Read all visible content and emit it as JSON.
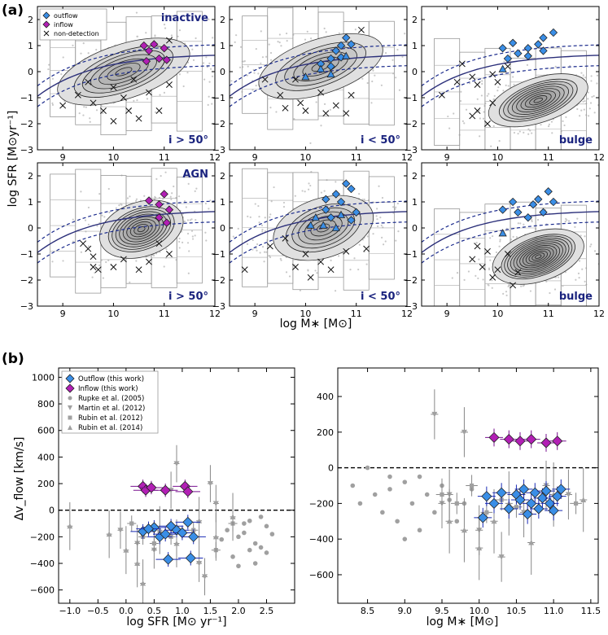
{
  "figure": {
    "label_a": "(a)",
    "label_b": "(b)",
    "shared_ylabel_a": "log SFR [M⊙yr⁻¹]",
    "shared_xlabel_a": "log M∗ [M⊙]"
  },
  "colors": {
    "outflow": "#3a8ee6",
    "inflow": "#b21fb5",
    "dashed_line": "#1a2a8c",
    "solid_line": "#2b2f7a",
    "label_text": "#1a237e",
    "literature": "#a0a0a0"
  },
  "chart_data": [
    {
      "id": "a1",
      "type": "scatter",
      "xlim": [
        8.5,
        12
      ],
      "ylim": [
        -3,
        2.5
      ],
      "xticks": [
        "9",
        "10",
        "11",
        "12"
      ],
      "yticks": [
        "-3",
        "-2",
        "-1",
        "0",
        "1",
        "2"
      ],
      "label_top": "inactive",
      "label_bottom": "i > 50°",
      "legend": [
        "outflow",
        "inflow",
        "non-detection"
      ],
      "outflow": [],
      "outflow_tri": [],
      "inflow": [
        [
          10.6,
          1.0
        ],
        [
          10.8,
          1.05
        ],
        [
          10.7,
          0.8
        ],
        [
          11.0,
          0.9
        ],
        [
          10.9,
          0.5
        ],
        [
          11.05,
          0.45
        ],
        [
          10.65,
          0.4
        ]
      ],
      "nondet": [
        [
          9.0,
          -1.3
        ],
        [
          9.5,
          -0.4
        ],
        [
          9.6,
          -1.2
        ],
        [
          9.8,
          -1.5
        ],
        [
          10.0,
          -0.6
        ],
        [
          10.2,
          -1.0
        ],
        [
          10.3,
          -1.5
        ],
        [
          10.4,
          -0.3
        ],
        [
          10.5,
          -1.8
        ],
        [
          10.7,
          -0.8
        ],
        [
          10.9,
          -1.5
        ],
        [
          11.1,
          1.2
        ],
        [
          11.1,
          -0.5
        ],
        [
          9.3,
          -0.9
        ],
        [
          10.0,
          -1.9
        ]
      ],
      "contour_center": [
        10.2,
        0.0
      ],
      "contour_spread": [
        0.8,
        0.55
      ],
      "contour_levels": 6
    },
    {
      "id": "a2",
      "type": "scatter",
      "xlim": [
        8.5,
        12
      ],
      "ylim": [
        -3,
        2.5
      ],
      "xticks": [
        "9",
        "10",
        "11",
        "12"
      ],
      "yticks": [
        "-3",
        "-2",
        "-1",
        "0",
        "1",
        "2"
      ],
      "label_top": "",
      "label_bottom": "i < 50°",
      "outflow": [
        [
          10.3,
          0.3
        ],
        [
          10.5,
          0.5
        ],
        [
          10.6,
          0.8
        ],
        [
          10.7,
          1.0
        ],
        [
          10.8,
          1.3
        ],
        [
          10.9,
          1.05
        ],
        [
          10.5,
          0.2
        ],
        [
          10.7,
          0.55
        ]
      ],
      "outflow_tri": [
        [
          10.0,
          -0.2
        ],
        [
          10.3,
          0.1
        ],
        [
          10.5,
          -0.1
        ],
        [
          10.8,
          0.6
        ]
      ],
      "inflow": [],
      "nondet": [
        [
          9.2,
          -0.3
        ],
        [
          9.5,
          -0.9
        ],
        [
          9.6,
          -1.4
        ],
        [
          9.9,
          -1.2
        ],
        [
          10.0,
          -1.5
        ],
        [
          10.3,
          -0.8
        ],
        [
          10.4,
          -1.6
        ],
        [
          10.6,
          -1.3
        ],
        [
          10.9,
          -0.9
        ],
        [
          11.1,
          1.6
        ],
        [
          9.8,
          -0.3
        ],
        [
          10.8,
          -1.6
        ]
      ],
      "contour_center": [
        10.3,
        0.2
      ],
      "contour_spread": [
        0.75,
        0.55
      ],
      "contour_levels": 5
    },
    {
      "id": "a3",
      "type": "scatter",
      "xlim": [
        8.5,
        12
      ],
      "ylim": [
        -3,
        2.5
      ],
      "xticks": [
        "9",
        "10",
        "11",
        "12"
      ],
      "yticks": [
        "-3",
        "-2",
        "-1",
        "0",
        "1",
        "2"
      ],
      "label_top": "",
      "label_bottom": "bulge",
      "outflow": [
        [
          11.1,
          1.5
        ],
        [
          10.9,
          1.3
        ],
        [
          10.8,
          1.05
        ],
        [
          10.6,
          0.9
        ],
        [
          10.4,
          0.7
        ],
        [
          10.2,
          0.5
        ],
        [
          10.1,
          0.9
        ],
        [
          10.3,
          1.1
        ],
        [
          10.6,
          0.6
        ],
        [
          10.9,
          0.8
        ]
      ],
      "outflow_tri": [
        [
          10.1,
          0.1
        ]
      ],
      "inflow": [],
      "nondet": [
        [
          8.9,
          -0.9
        ],
        [
          9.2,
          -0.4
        ],
        [
          9.5,
          -0.2
        ],
        [
          9.6,
          -0.5
        ],
        [
          9.9,
          -0.1
        ],
        [
          10.0,
          -0.4
        ],
        [
          9.5,
          -1.7
        ],
        [
          9.6,
          -1.5
        ],
        [
          9.8,
          -2.0
        ],
        [
          9.9,
          -1.2
        ],
        [
          10.2,
          0.2
        ],
        [
          9.3,
          0.3
        ]
      ],
      "contour_center": [
        10.8,
        -1.1
      ],
      "contour_spread": [
        0.6,
        0.45
      ],
      "contour_levels": 9
    },
    {
      "id": "a4",
      "type": "scatter",
      "xlim": [
        8.5,
        12
      ],
      "ylim": [
        -3,
        2.5
      ],
      "xticks": [
        "9",
        "10",
        "11",
        "12"
      ],
      "yticks": [
        "-3",
        "-2",
        "-1",
        "0",
        "1",
        "2"
      ],
      "label_top": "AGN",
      "label_bottom": "i > 50°",
      "outflow": [],
      "outflow_tri": [],
      "inflow": [
        [
          10.7,
          1.05
        ],
        [
          11.0,
          1.3
        ],
        [
          10.9,
          0.9
        ],
        [
          11.1,
          0.7
        ],
        [
          10.9,
          0.4
        ],
        [
          11.05,
          0.2
        ]
      ],
      "nondet": [
        [
          9.4,
          -0.6
        ],
        [
          9.5,
          -0.8
        ],
        [
          9.6,
          -1.1
        ],
        [
          9.7,
          -1.6
        ],
        [
          10.0,
          -1.5
        ],
        [
          10.2,
          -1.2
        ],
        [
          10.5,
          -1.6
        ],
        [
          10.7,
          -1.3
        ],
        [
          10.9,
          -0.6
        ],
        [
          11.1,
          -1.0
        ],
        [
          9.6,
          -1.5
        ]
      ],
      "contour_center": [
        10.55,
        -0.05
      ],
      "contour_spread": [
        0.5,
        0.55
      ],
      "contour_levels": 9
    },
    {
      "id": "a5",
      "type": "scatter",
      "xlim": [
        8.5,
        12
      ],
      "ylim": [
        -3,
        2.5
      ],
      "xticks": [
        "9",
        "10",
        "11",
        "12"
      ],
      "yticks": [
        "-3",
        "-2",
        "-1",
        "0",
        "1",
        "2"
      ],
      "label_top": "",
      "label_bottom": "i < 50°",
      "outflow": [
        [
          10.4,
          1.1
        ],
        [
          10.6,
          1.3
        ],
        [
          10.7,
          1.0
        ],
        [
          10.9,
          1.5
        ],
        [
          10.8,
          1.7
        ],
        [
          10.4,
          0.7
        ],
        [
          10.5,
          0.4
        ],
        [
          10.9,
          0.3
        ],
        [
          11.0,
          0.6
        ]
      ],
      "outflow_tri": [
        [
          10.1,
          0.1
        ],
        [
          10.2,
          0.4
        ],
        [
          10.35,
          0.1
        ],
        [
          10.6,
          0.0
        ],
        [
          10.7,
          0.5
        ]
      ],
      "inflow": [],
      "nondet": [
        [
          9.3,
          -0.7
        ],
        [
          9.6,
          -0.4
        ],
        [
          9.8,
          -1.5
        ],
        [
          10.0,
          -1.0
        ],
        [
          10.3,
          -1.3
        ],
        [
          10.5,
          -1.6
        ],
        [
          10.8,
          -0.9
        ],
        [
          11.2,
          -0.8
        ],
        [
          8.8,
          -1.6
        ],
        [
          10.1,
          -1.9
        ]
      ],
      "contour_center": [
        10.35,
        0.0
      ],
      "contour_spread": [
        0.6,
        0.6
      ],
      "contour_levels": 6
    },
    {
      "id": "a6",
      "type": "scatter",
      "xlim": [
        8.5,
        12
      ],
      "ylim": [
        -3,
        2.5
      ],
      "xticks": [
        "9",
        "10",
        "11",
        "12"
      ],
      "yticks": [
        "-3",
        "-2",
        "-1",
        "0",
        "1",
        "2"
      ],
      "label_top": "",
      "label_bottom": "bulge",
      "outflow": [
        [
          10.1,
          0.7
        ],
        [
          10.3,
          1.0
        ],
        [
          10.6,
          0.4
        ],
        [
          10.7,
          0.9
        ],
        [
          10.8,
          1.1
        ],
        [
          11.0,
          1.4
        ],
        [
          11.1,
          1.0
        ],
        [
          10.9,
          0.6
        ],
        [
          10.4,
          0.6
        ]
      ],
      "outflow_tri": [
        [
          10.1,
          -0.2
        ]
      ],
      "inflow": [],
      "nondet": [
        [
          9.5,
          -1.2
        ],
        [
          9.6,
          -0.7
        ],
        [
          9.7,
          -1.5
        ],
        [
          9.8,
          -0.9
        ],
        [
          10.0,
          -1.6
        ],
        [
          10.2,
          -1.0
        ],
        [
          10.4,
          -1.7
        ],
        [
          10.3,
          -2.2
        ],
        [
          9.9,
          -1.9
        ]
      ],
      "contour_center": [
        10.8,
        -1.1
      ],
      "contour_spread": [
        0.55,
        0.5
      ],
      "contour_levels": 12
    },
    {
      "id": "b1",
      "type": "scatter",
      "xlim": [
        -1.2,
        3.0
      ],
      "ylim": [
        -700,
        1070
      ],
      "xticks": [
        "-1.0",
        "-0.5",
        "0.0",
        "0.5",
        "1.0",
        "1.5",
        "2.0",
        "2.5"
      ],
      "yticks": [
        "-600",
        "-400",
        "-200",
        "0",
        "200",
        "400",
        "600",
        "800",
        "1000"
      ],
      "xlabel": "log SFR [M⊙ yr⁻¹]",
      "ylabel": "Δv_flow [km/s]",
      "legend": [
        "Outflow (this work)",
        "Inflow (this work)",
        "Rupke et al. (2005)",
        "Martin et al. (2012)",
        "Rubin et al. (2012)",
        "Rubin et al. (2014)"
      ],
      "outflow": [
        [
          0.3,
          -160
        ],
        [
          0.5,
          -130
        ],
        [
          0.6,
          -200
        ],
        [
          0.7,
          -180
        ],
        [
          0.8,
          -120
        ],
        [
          0.9,
          -150
        ],
        [
          1.0,
          -170
        ],
        [
          1.1,
          -90
        ],
        [
          0.75,
          -370
        ],
        [
          1.15,
          -360
        ],
        [
          0.4,
          -140
        ],
        [
          1.2,
          -200
        ]
      ],
      "inflow": [
        [
          0.3,
          180
        ],
        [
          0.35,
          150
        ],
        [
          0.45,
          170
        ],
        [
          0.7,
          150
        ],
        [
          1.05,
          180
        ],
        [
          1.1,
          140
        ]
      ],
      "rupke": [
        [
          1.8,
          -150
        ],
        [
          2.0,
          -200
        ],
        [
          2.1,
          -100
        ],
        [
          2.2,
          -300
        ],
        [
          2.3,
          -250
        ],
        [
          2.4,
          -50
        ],
        [
          2.5,
          -120
        ],
        [
          2.3,
          -400
        ],
        [
          2.6,
          -180
        ],
        [
          1.9,
          -350
        ],
        [
          2.2,
          -80
        ],
        [
          2.4,
          -280
        ],
        [
          1.7,
          -220
        ],
        [
          2.0,
          -420
        ],
        [
          2.5,
          -320
        ],
        [
          2.1,
          -170
        ]
      ],
      "martin": [
        [
          -0.1,
          -150
        ],
        [
          0.5,
          -300
        ],
        [
          0.8,
          150
        ],
        [
          0.9,
          350
        ],
        [
          1.3,
          -400
        ],
        [
          1.5,
          200
        ],
        [
          1.6,
          50
        ],
        [
          0.2,
          -250
        ],
        [
          1.4,
          -500
        ]
      ],
      "rubin12": [
        [
          0.1,
          -100
        ],
        [
          0.5,
          -250
        ],
        [
          0.8,
          -200
        ],
        [
          1.2,
          -150
        ],
        [
          1.6,
          -300
        ],
        [
          1.9,
          -100
        ],
        [
          0.3,
          -200
        ]
      ],
      "rubin14": [
        [
          -1.0,
          -120
        ],
        [
          -0.3,
          -180
        ],
        [
          0.2,
          -400
        ],
        [
          0.3,
          -550
        ],
        [
          0.6,
          -150
        ],
        [
          0.9,
          -250
        ],
        [
          1.3,
          -80
        ],
        [
          1.6,
          -200
        ],
        [
          1.9,
          -50
        ],
        [
          0.0,
          -300
        ]
      ]
    },
    {
      "id": "b2",
      "type": "scatter",
      "xlim": [
        8.1,
        11.6
      ],
      "ylim": [
        -760,
        560
      ],
      "xticks": [
        "8.5",
        "9.0",
        "9.5",
        "10.0",
        "10.5",
        "11.0",
        "11.5"
      ],
      "yticks": [
        "-600",
        "-400",
        "-200",
        "0",
        "200",
        "400"
      ],
      "xlabel": "log M∗ [M⊙]",
      "outflow": [
        [
          10.05,
          -280
        ],
        [
          10.1,
          -160
        ],
        [
          10.2,
          -200
        ],
        [
          10.3,
          -140
        ],
        [
          10.4,
          -230
        ],
        [
          10.5,
          -150
        ],
        [
          10.55,
          -180
        ],
        [
          10.6,
          -120
        ],
        [
          10.7,
          -200
        ],
        [
          10.75,
          -140
        ],
        [
          10.8,
          -230
        ],
        [
          10.85,
          -170
        ],
        [
          10.9,
          -130
        ],
        [
          10.95,
          -200
        ],
        [
          11.0,
          -240
        ],
        [
          11.05,
          -160
        ],
        [
          11.1,
          -120
        ],
        [
          10.65,
          -260
        ]
      ],
      "inflow": [
        [
          10.2,
          170
        ],
        [
          10.4,
          160
        ],
        [
          10.55,
          150
        ],
        [
          10.7,
          160
        ],
        [
          10.9,
          140
        ],
        [
          11.05,
          150
        ]
      ],
      "rupke": [
        [
          8.3,
          -100
        ],
        [
          8.4,
          -200
        ],
        [
          8.5,
          0
        ],
        [
          8.6,
          -150
        ],
        [
          8.7,
          -250
        ],
        [
          8.8,
          -120
        ],
        [
          8.9,
          -300
        ],
        [
          9.0,
          -80
        ],
        [
          9.1,
          -200
        ],
        [
          9.2,
          -350
        ],
        [
          9.3,
          -150
        ],
        [
          9.4,
          -250
        ],
        [
          9.5,
          -100
        ],
        [
          9.6,
          -180
        ],
        [
          9.7,
          -300
        ],
        [
          9.8,
          -200
        ],
        [
          9.9,
          -120
        ],
        [
          8.8,
          -50
        ],
        [
          9.0,
          -400
        ],
        [
          9.2,
          -50
        ]
      ],
      "martin": [
        [
          9.4,
          300
        ],
        [
          9.6,
          -150
        ],
        [
          9.8,
          200
        ],
        [
          10.0,
          -350
        ],
        [
          10.3,
          -500
        ],
        [
          10.6,
          -250
        ],
        [
          10.9,
          -100
        ],
        [
          11.2,
          -150
        ],
        [
          9.5,
          -200
        ]
      ],
      "rubin12": [
        [
          9.5,
          -150
        ],
        [
          9.7,
          -200
        ],
        [
          9.9,
          -100
        ],
        [
          10.1,
          -250
        ],
        [
          10.3,
          -180
        ],
        [
          10.5,
          -220
        ],
        [
          11.3,
          -200
        ]
      ],
      "rubin14": [
        [
          9.8,
          -350
        ],
        [
          10.0,
          -450
        ],
        [
          10.2,
          -300
        ],
        [
          10.4,
          -200
        ],
        [
          10.7,
          -420
        ],
        [
          11.0,
          -150
        ],
        [
          11.4,
          -180
        ],
        [
          9.6,
          -300
        ]
      ]
    }
  ]
}
